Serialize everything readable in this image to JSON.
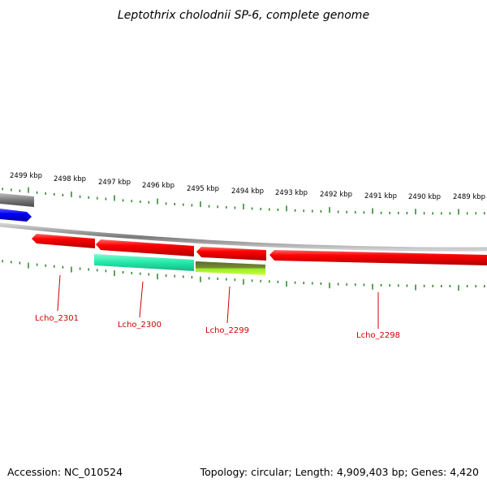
{
  "title": "Leptothrix cholodnii SP-6, complete genome",
  "footer": {
    "accession": "Accession: NC_010524",
    "summary": "Topology: circular; Length: 4,909,403 bp; Genes: 4,420"
  },
  "colors": {
    "forward_gene": "#ff0000",
    "backbone": "#888888",
    "tick": "#1a7a1a",
    "label": "#cc0000",
    "blue_feature": "#0000ff",
    "teal_feature": "#22e8a8",
    "lime_feature": "#99ee22"
  },
  "scale_labels": [
    "2499 kbp",
    "2498 kbp",
    "2497 kbp",
    "2496 kbp",
    "2495 kbp",
    "2494 kbp",
    "2493 kbp",
    "2492 kbp",
    "2491 kbp",
    "2490 kbp",
    "2489 kbp"
  ],
  "genes": [
    {
      "name": "Lcho_2301"
    },
    {
      "name": "Lcho_2300"
    },
    {
      "name": "Lcho_2299"
    },
    {
      "name": "Lcho_2298"
    }
  ]
}
